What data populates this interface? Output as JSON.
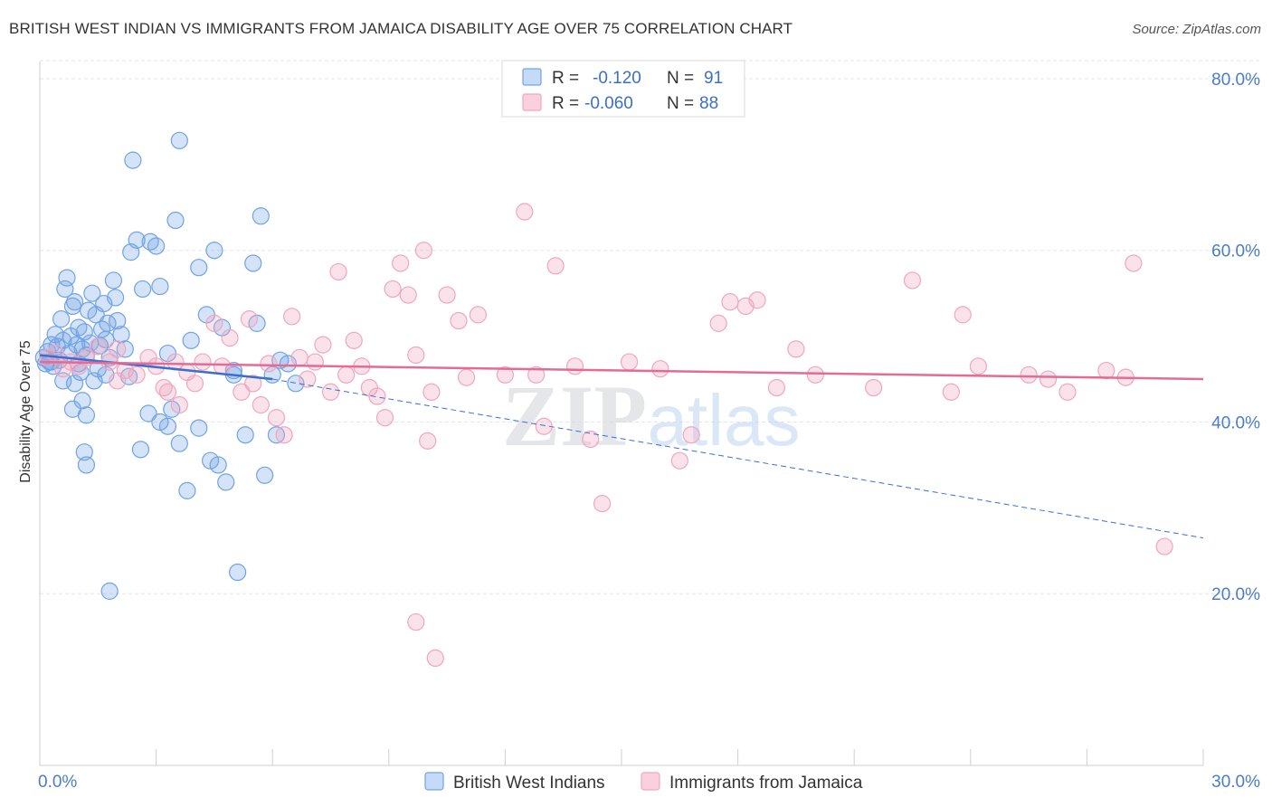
{
  "header": {
    "title": "BRITISH WEST INDIAN VS IMMIGRANTS FROM JAMAICA DISABILITY AGE OVER 75 CORRELATION CHART",
    "source": "Source: ZipAtlas.com"
  },
  "colors": {
    "blue": "#6fa3e6",
    "blue_line": "#3a6fd0",
    "pink": "#f0a6bf",
    "pink_line": "#e56a96",
    "grid": "#e3e6ee",
    "tick_text": "#4a7cc7"
  },
  "chart_data": {
    "type": "scatter",
    "title": "BRITISH WEST INDIAN VS IMMIGRANTS FROM JAMAICA DISABILITY AGE OVER 75 CORRELATION CHART",
    "xlabel": "",
    "ylabel": "Disability Age Over 75",
    "xlim": [
      0,
      30
    ],
    "ylim": [
      0,
      82
    ],
    "x_tick_labels": [
      "0.0%",
      "30.0%"
    ],
    "y_ticks": [
      20,
      40,
      60,
      80
    ],
    "y_tick_labels": [
      "20.0%",
      "40.0%",
      "60.0%",
      "80.0%"
    ],
    "watermark": {
      "zip": "ZIP",
      "atlas": "atlas"
    },
    "legend": [
      {
        "r_label": "R =",
        "r_value": "-0.120",
        "n_label": "N =",
        "n_value": "91"
      },
      {
        "r_label": "R =",
        "r_value": "-0.060",
        "n_label": "N =",
        "n_value": "88"
      }
    ],
    "series": [
      {
        "name": "British West Indians",
        "trend_solid": [
          [
            0.0,
            47.8
          ],
          [
            6.0,
            45.0
          ]
        ],
        "trend_dashed": [
          [
            6.0,
            45.0
          ],
          [
            30.0,
            26.5
          ]
        ],
        "points": [
          [
            0.1,
            47.5
          ],
          [
            0.15,
            46.8
          ],
          [
            0.2,
            48.2
          ],
          [
            0.25,
            47.0
          ],
          [
            0.3,
            49.0
          ],
          [
            0.35,
            46.5
          ],
          [
            0.4,
            50.2
          ],
          [
            0.45,
            48.8
          ],
          [
            0.5,
            47.2
          ],
          [
            0.55,
            52.0
          ],
          [
            0.6,
            49.5
          ],
          [
            0.65,
            55.5
          ],
          [
            0.7,
            56.8
          ],
          [
            0.75,
            48.0
          ],
          [
            0.8,
            50.0
          ],
          [
            0.85,
            53.5
          ],
          [
            0.9,
            54.0
          ],
          [
            0.95,
            49.0
          ],
          [
            1.0,
            51.0
          ],
          [
            1.05,
            45.8
          ],
          [
            1.1,
            48.5
          ],
          [
            1.15,
            50.5
          ],
          [
            1.2,
            47.8
          ],
          [
            1.25,
            53.0
          ],
          [
            1.3,
            49.2
          ],
          [
            1.35,
            55.0
          ],
          [
            1.4,
            44.8
          ],
          [
            1.45,
            52.5
          ],
          [
            1.5,
            46.2
          ],
          [
            1.55,
            48.9
          ],
          [
            1.6,
            50.8
          ],
          [
            1.65,
            53.8
          ],
          [
            1.7,
            49.6
          ],
          [
            1.75,
            51.5
          ],
          [
            1.8,
            47.5
          ],
          [
            1.9,
            56.5
          ],
          [
            1.95,
            54.5
          ],
          [
            2.0,
            51.8
          ],
          [
            2.1,
            50.2
          ],
          [
            2.2,
            48.5
          ],
          [
            2.35,
            59.8
          ],
          [
            2.5,
            61.2
          ],
          [
            2.65,
            55.5
          ],
          [
            2.85,
            61.0
          ],
          [
            3.0,
            60.5
          ],
          [
            3.1,
            55.8
          ],
          [
            3.3,
            48.0
          ],
          [
            3.5,
            63.5
          ],
          [
            3.6,
            72.8
          ],
          [
            3.9,
            49.5
          ],
          [
            4.1,
            58.0
          ],
          [
            4.3,
            52.5
          ],
          [
            4.5,
            60.0
          ],
          [
            4.7,
            51.0
          ],
          [
            5.0,
            46.0
          ],
          [
            5.0,
            45.5
          ],
          [
            5.3,
            38.5
          ],
          [
            5.5,
            58.5
          ],
          [
            5.6,
            51.5
          ],
          [
            5.7,
            64.0
          ],
          [
            6.0,
            45.5
          ],
          [
            6.2,
            47.2
          ],
          [
            6.4,
            46.8
          ],
          [
            6.6,
            44.5
          ],
          [
            1.0,
            46.8
          ],
          [
            0.6,
            44.8
          ],
          [
            0.9,
            44.5
          ],
          [
            1.1,
            42.5
          ],
          [
            1.2,
            40.8
          ],
          [
            0.85,
            41.5
          ],
          [
            1.15,
            36.5
          ],
          [
            1.2,
            35.0
          ],
          [
            1.7,
            45.5
          ],
          [
            2.3,
            45.3
          ],
          [
            2.6,
            36.8
          ],
          [
            2.8,
            41.0
          ],
          [
            3.1,
            40.0
          ],
          [
            3.3,
            39.5
          ],
          [
            3.4,
            41.5
          ],
          [
            3.6,
            37.5
          ],
          [
            3.8,
            32.0
          ],
          [
            4.1,
            39.3
          ],
          [
            4.4,
            35.5
          ],
          [
            4.6,
            35.0
          ],
          [
            4.8,
            33.0
          ],
          [
            5.1,
            22.5
          ],
          [
            5.8,
            33.8
          ],
          [
            6.1,
            38.5
          ],
          [
            2.4,
            70.5
          ],
          [
            1.8,
            20.3
          ],
          [
            0.3,
            47.0
          ]
        ]
      },
      {
        "name": "Immigrants from Jamaica",
        "trend_solid": [
          [
            0.0,
            47.0
          ],
          [
            30.0,
            45.0
          ]
        ],
        "points": [
          [
            0.2,
            47.5
          ],
          [
            0.4,
            48.0
          ],
          [
            0.6,
            46.2
          ],
          [
            0.8,
            47.0
          ],
          [
            1.0,
            46.5
          ],
          [
            1.2,
            47.5
          ],
          [
            1.5,
            48.8
          ],
          [
            1.8,
            47.0
          ],
          [
            2.0,
            48.5
          ],
          [
            2.2,
            46.0
          ],
          [
            2.5,
            45.5
          ],
          [
            2.8,
            47.5
          ],
          [
            3.0,
            46.5
          ],
          [
            3.2,
            44.0
          ],
          [
            3.5,
            47.0
          ],
          [
            3.8,
            45.8
          ],
          [
            4.0,
            44.5
          ],
          [
            4.2,
            47.0
          ],
          [
            4.5,
            51.5
          ],
          [
            4.7,
            46.5
          ],
          [
            4.9,
            49.8
          ],
          [
            5.2,
            43.5
          ],
          [
            5.4,
            52.0
          ],
          [
            5.5,
            44.5
          ],
          [
            5.7,
            42.0
          ],
          [
            5.9,
            46.8
          ],
          [
            6.1,
            40.5
          ],
          [
            6.3,
            38.5
          ],
          [
            6.5,
            52.3
          ],
          [
            6.7,
            47.5
          ],
          [
            6.9,
            45.0
          ],
          [
            7.1,
            47.0
          ],
          [
            7.3,
            49.0
          ],
          [
            7.5,
            43.5
          ],
          [
            7.7,
            57.5
          ],
          [
            7.9,
            45.5
          ],
          [
            8.1,
            49.5
          ],
          [
            8.3,
            46.5
          ],
          [
            8.5,
            44.0
          ],
          [
            8.7,
            43.0
          ],
          [
            8.9,
            40.5
          ],
          [
            9.1,
            55.5
          ],
          [
            9.3,
            58.5
          ],
          [
            9.5,
            54.8
          ],
          [
            9.7,
            47.8
          ],
          [
            9.9,
            60.0
          ],
          [
            10.1,
            43.5
          ],
          [
            10.5,
            54.8
          ],
          [
            10.8,
            51.8
          ],
          [
            11.0,
            45.2
          ],
          [
            11.3,
            52.5
          ],
          [
            12.0,
            45.5
          ],
          [
            12.5,
            64.5
          ],
          [
            12.8,
            45.5
          ],
          [
            13.0,
            39.5
          ],
          [
            13.3,
            58.2
          ],
          [
            13.8,
            46.5
          ],
          [
            14.2,
            38.0
          ],
          [
            14.5,
            30.5
          ],
          [
            15.2,
            47.0
          ],
          [
            16.0,
            46.2
          ],
          [
            16.5,
            35.5
          ],
          [
            16.8,
            38.5
          ],
          [
            17.5,
            51.5
          ],
          [
            17.8,
            54.0
          ],
          [
            18.2,
            53.5
          ],
          [
            18.5,
            54.2
          ],
          [
            19.0,
            44.0
          ],
          [
            19.5,
            48.5
          ],
          [
            20.0,
            45.5
          ],
          [
            21.5,
            44.0
          ],
          [
            22.5,
            56.5
          ],
          [
            23.5,
            43.5
          ],
          [
            23.8,
            52.5
          ],
          [
            24.2,
            46.5
          ],
          [
            25.5,
            45.5
          ],
          [
            26.0,
            45.0
          ],
          [
            26.5,
            43.5
          ],
          [
            27.5,
            46.0
          ],
          [
            28.2,
            58.5
          ],
          [
            28.0,
            45.2
          ],
          [
            29.0,
            25.5
          ],
          [
            10.0,
            37.8
          ],
          [
            9.7,
            16.7
          ],
          [
            10.2,
            12.5
          ],
          [
            3.3,
            43.5
          ],
          [
            2.0,
            44.8
          ],
          [
            3.6,
            42.0
          ]
        ]
      }
    ]
  },
  "bottom_legend": [
    {
      "label": "British West Indians"
    },
    {
      "label": "Immigrants from Jamaica"
    }
  ]
}
